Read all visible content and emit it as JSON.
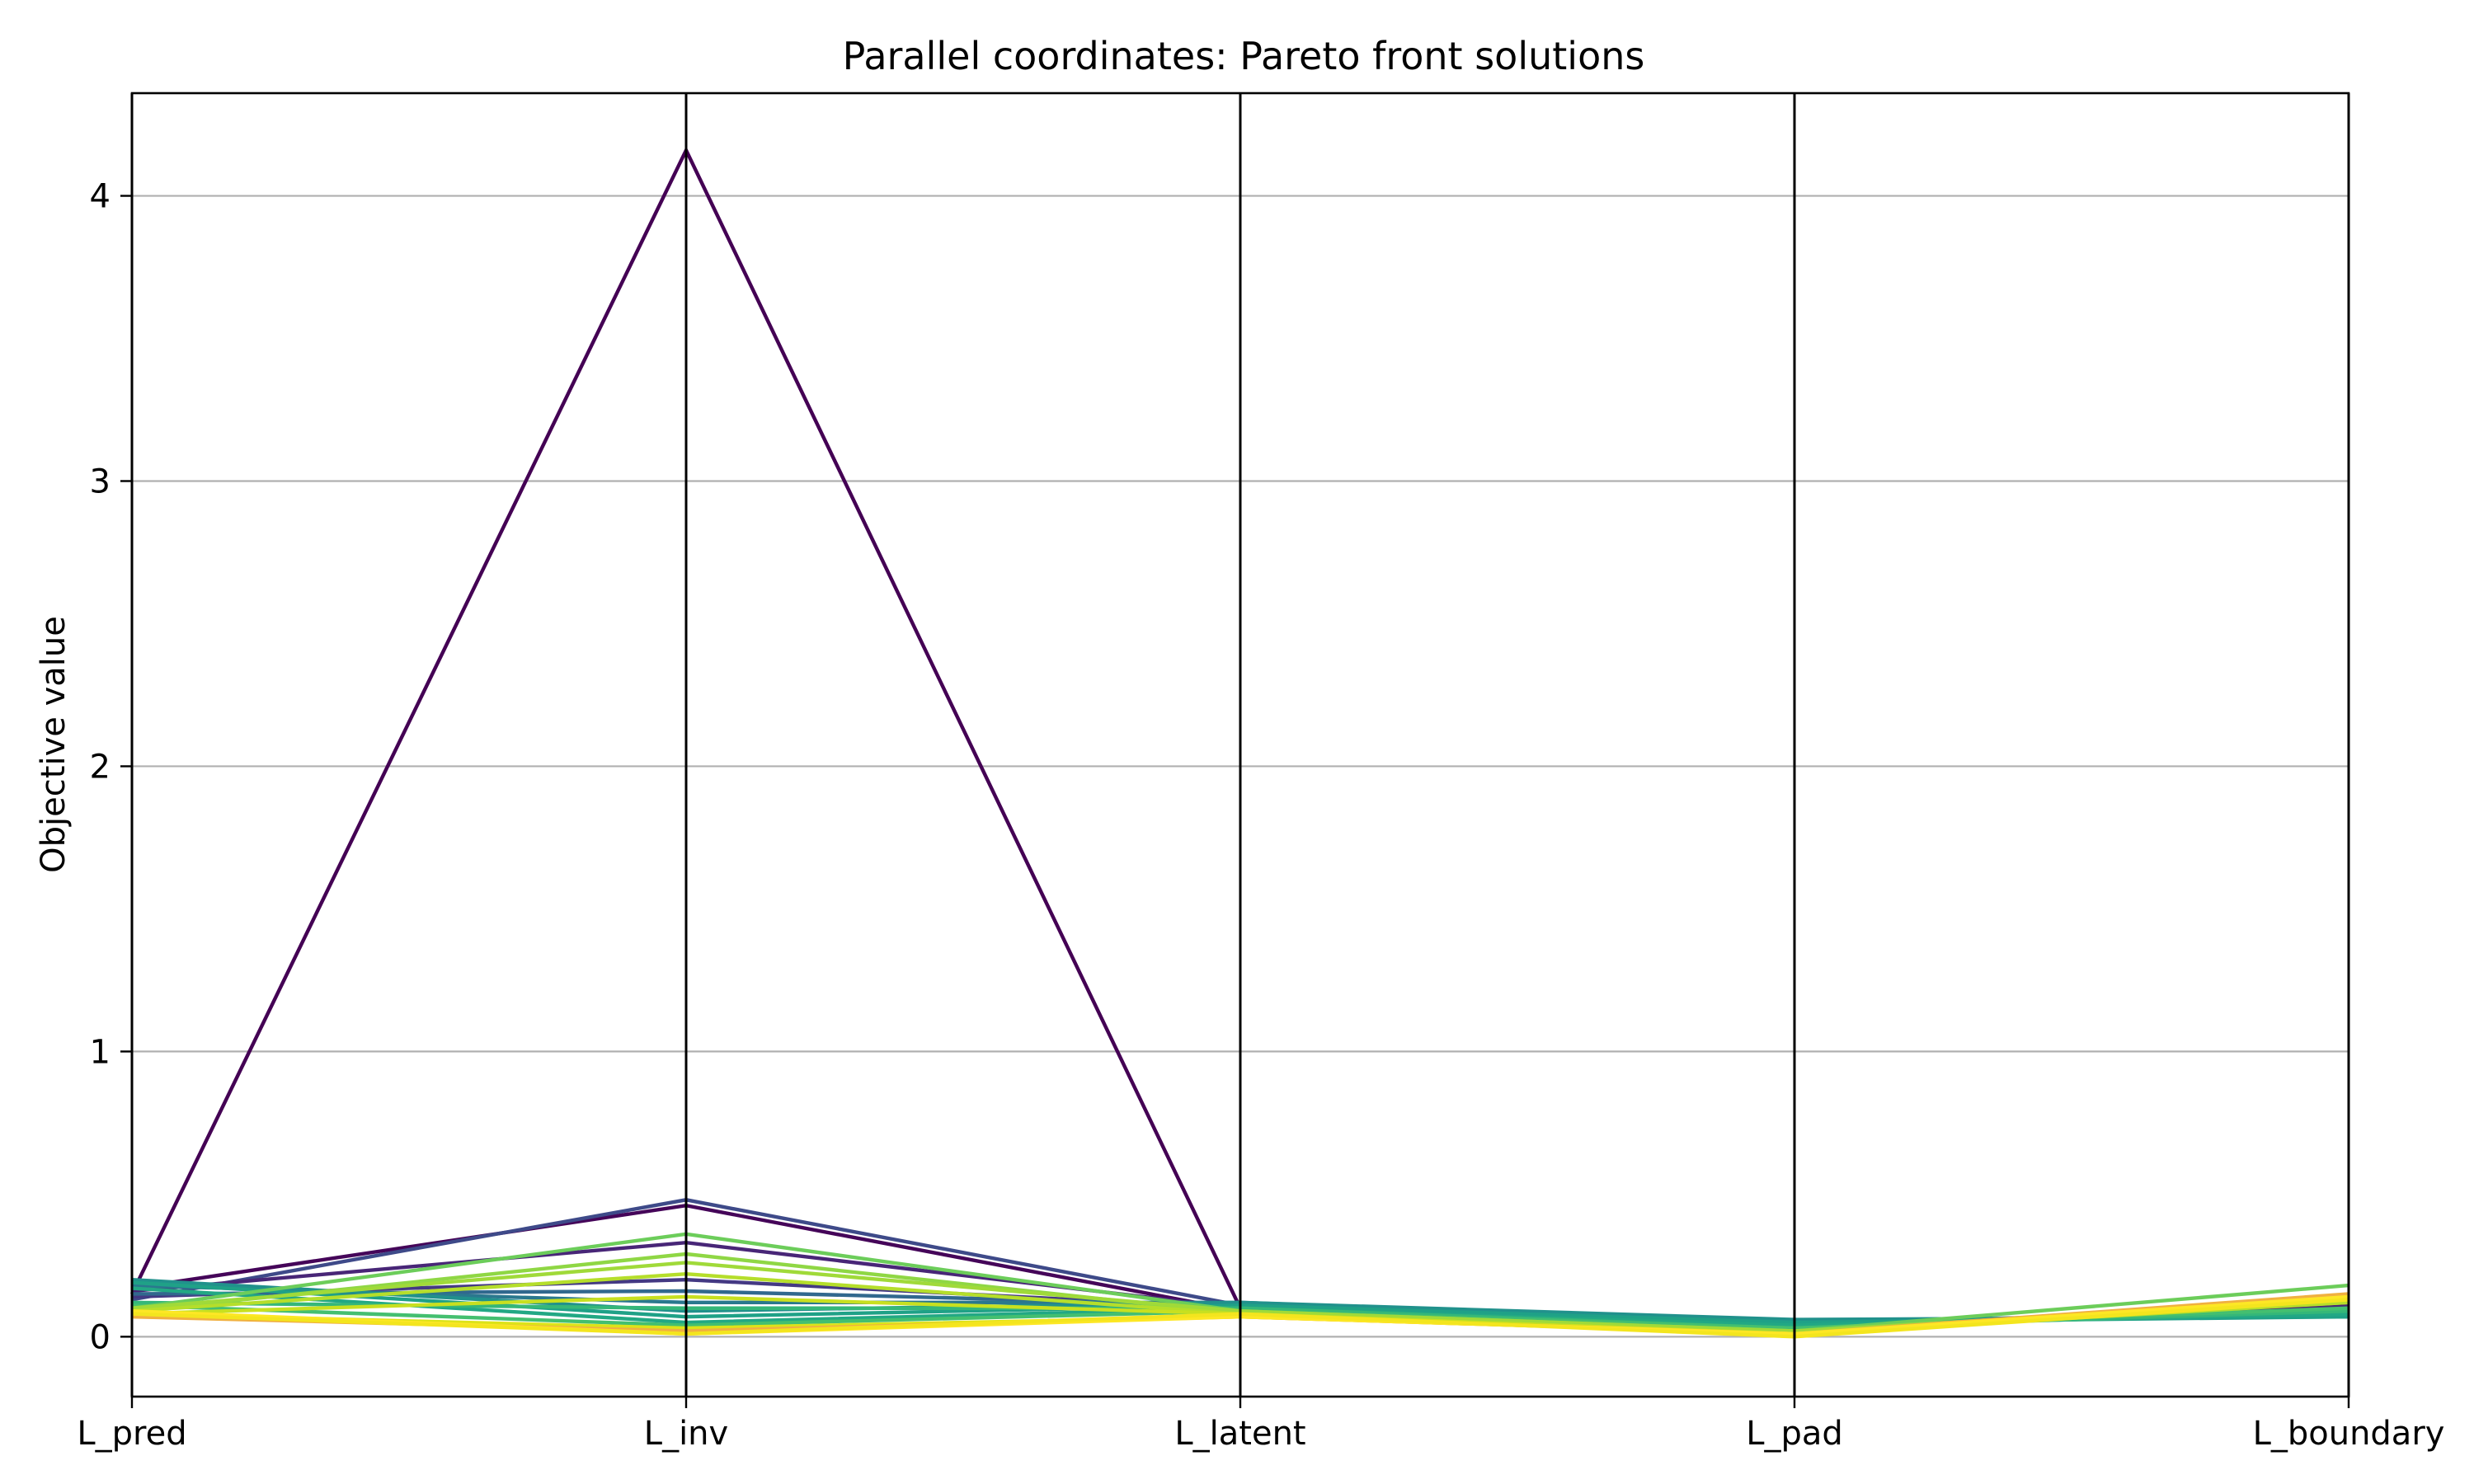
{
  "chart_data": {
    "type": "parallel-coordinates",
    "title": "Parallel coordinates: Pareto front solutions",
    "ylabel": "Objective value",
    "xlabel": "",
    "axes": [
      "L_pred",
      "L_inv",
      "L_latent",
      "L_pad",
      "L_boundary"
    ],
    "ylim": [
      -0.21,
      4.36
    ],
    "yticks": [
      0,
      1,
      2,
      3,
      4
    ],
    "grid": "horizontal",
    "legend": "none",
    "colormap": "viridis",
    "series": [
      {
        "values": [
          0.15,
          4.16,
          0.1,
          0.02,
          0.12
        ],
        "color": "#440154"
      },
      {
        "values": [
          0.17,
          0.46,
          0.09,
          0.02,
          0.11
        ],
        "color": "#450559"
      },
      {
        "values": [
          0.13,
          0.48,
          0.11,
          0.03,
          0.1
        ],
        "color": "#3e4a89"
      },
      {
        "values": [
          0.16,
          0.33,
          0.1,
          0.03,
          0.11
        ],
        "color": "#482677"
      },
      {
        "values": [
          0.14,
          0.2,
          0.1,
          0.04,
          0.09
        ],
        "color": "#443983"
      },
      {
        "values": [
          0.15,
          0.16,
          0.11,
          0.05,
          0.09
        ],
        "color": "#31688e"
      },
      {
        "values": [
          0.18,
          0.12,
          0.12,
          0.05,
          0.08
        ],
        "color": "#2a788e"
      },
      {
        "values": [
          0.2,
          0.09,
          0.12,
          0.06,
          0.07
        ],
        "color": "#21918c"
      },
      {
        "values": [
          0.19,
          0.07,
          0.11,
          0.05,
          0.07
        ],
        "color": "#1fa187"
      },
      {
        "values": [
          0.17,
          0.05,
          0.1,
          0.04,
          0.08
        ],
        "color": "#22a884"
      },
      {
        "values": [
          0.12,
          0.1,
          0.1,
          0.03,
          0.09
        ],
        "color": "#35b779"
      },
      {
        "values": [
          0.11,
          0.04,
          0.09,
          0.03,
          0.1
        ],
        "color": "#44bf70"
      },
      {
        "values": [
          0.1,
          0.36,
          0.09,
          0.02,
          0.18
        ],
        "color": "#6ccd5a"
      },
      {
        "values": [
          0.09,
          0.29,
          0.08,
          0.02,
          0.13
        ],
        "color": "#8fd744"
      },
      {
        "values": [
          0.1,
          0.26,
          0.09,
          0.02,
          0.12
        ],
        "color": "#a0da39"
      },
      {
        "values": [
          0.09,
          0.22,
          0.08,
          0.01,
          0.12
        ],
        "color": "#b5de2b"
      },
      {
        "values": [
          0.08,
          0.14,
          0.08,
          0.01,
          0.13
        ],
        "color": "#c8e020"
      },
      {
        "values": [
          0.08,
          0.03,
          0.07,
          0.01,
          0.14
        ],
        "color": "#dde318"
      },
      {
        "values": [
          0.07,
          0.02,
          0.07,
          0.01,
          0.15
        ],
        "color": "#f0b040"
      },
      {
        "values": [
          0.09,
          0.01,
          0.07,
          0.01,
          0.14
        ],
        "color": "#fde725"
      },
      {
        "values": [
          0.08,
          0.01,
          0.08,
          0.0,
          0.13
        ],
        "color": "#f3e51e"
      }
    ]
  }
}
